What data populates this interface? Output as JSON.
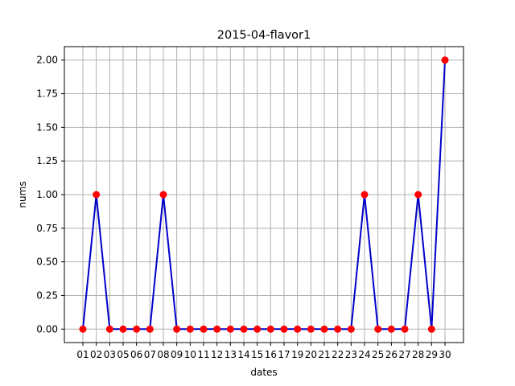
{
  "chart_data": {
    "type": "line",
    "title": "2015-04-flavor1",
    "xlabel": "dates",
    "ylabel": "nums",
    "categories": [
      "01",
      "02",
      "03",
      "05",
      "06",
      "07",
      "08",
      "09",
      "10",
      "11",
      "12",
      "13",
      "14",
      "15",
      "16",
      "17",
      "19",
      "20",
      "21",
      "22",
      "23",
      "24",
      "25",
      "26",
      "27",
      "28",
      "29",
      "30"
    ],
    "series": [
      {
        "values": [
          0,
          1,
          0,
          0,
          0,
          0,
          1,
          0,
          0,
          0,
          0,
          0,
          0,
          0,
          0,
          0,
          0,
          0,
          0,
          0,
          0,
          1,
          0,
          0,
          0,
          1,
          0,
          2
        ],
        "line_color": "#0000cc",
        "marker_color": "#ff0000"
      }
    ],
    "ylim": [
      -0.1,
      2.1
    ],
    "yticks": [
      0.0,
      0.25,
      0.5,
      0.75,
      1.0,
      1.25,
      1.5,
      1.75,
      2.0
    ],
    "ytick_labels": [
      "0.00",
      "0.25",
      "0.50",
      "0.75",
      "1.00",
      "1.25",
      "1.50",
      "1.75",
      "2.00"
    ],
    "grid": true
  }
}
